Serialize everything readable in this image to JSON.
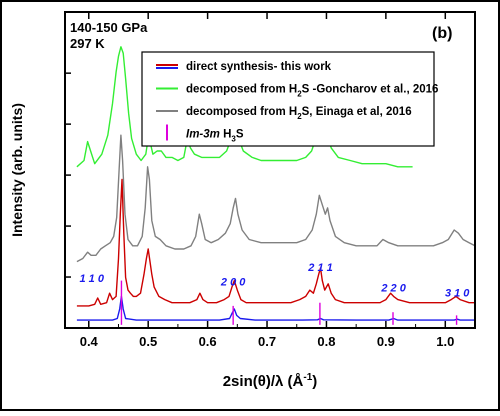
{
  "chart_data": {
    "type": "line",
    "panel_label": "(b)",
    "annotations": [
      "140-150 GPa",
      "297 K"
    ],
    "xlabel": "2sin(θ)/λ (Å⁻¹)",
    "xlabel_parts": {
      "main": "2sin(θ)/λ (",
      "unit": "Å",
      "sup": "-1",
      "close": ")"
    },
    "ylabel": "Intensity (arb. units)",
    "xlim": [
      0.36,
      1.05
    ],
    "ylim": [
      0,
      100
    ],
    "x_ticks": [
      "0.4",
      "0.5",
      "0.6",
      "0.7",
      "0.8",
      "0.9",
      "1.0"
    ],
    "legend": [
      {
        "type": "line",
        "color": "#cc0000",
        "color2": "#1a1aee",
        "parts": [
          {
            "t": "direct synthesis- this work"
          }
        ]
      },
      {
        "type": "line",
        "color": "#33ee33",
        "parts": [
          {
            "t": "decomposed from H"
          },
          {
            "t": "2",
            "sub": true
          },
          {
            "t": "S -Goncharov et al., 2016"
          }
        ]
      },
      {
        "type": "line",
        "color": "#808080",
        "parts": [
          {
            "t": "decomposed from H"
          },
          {
            "t": "2",
            "sub": true
          },
          {
            "t": "S, Einaga et al, 2016"
          }
        ]
      },
      {
        "type": "bar",
        "color": "#dd00dd",
        "parts": [
          {
            "t": "Im-3m",
            "italic": true
          },
          {
            "t": " H"
          },
          {
            "t": "3",
            "sub": true
          },
          {
            "t": "S"
          }
        ]
      }
    ],
    "peak_labels": [
      {
        "text": "1 1 0",
        "x": 0.405,
        "y": 14.5
      },
      {
        "text": "2 0 0",
        "x": 0.643,
        "y": 13.5
      },
      {
        "text": "2 1 1",
        "x": 0.79,
        "y": 18.0
      },
      {
        "text": "2 2 0",
        "x": 0.913,
        "y": 11.5
      },
      {
        "text": "3 1 0",
        "x": 1.02,
        "y": 10.0
      }
    ],
    "series": [
      {
        "name": "decomposed from H2S -Goncharov et al., 2016",
        "color": "#33ee33",
        "points": [
          [
            0.38,
            51
          ],
          [
            0.392,
            53
          ],
          [
            0.398,
            59
          ],
          [
            0.403,
            56
          ],
          [
            0.41,
            52
          ],
          [
            0.422,
            55
          ],
          [
            0.432,
            61
          ],
          [
            0.44,
            71
          ],
          [
            0.446,
            81
          ],
          [
            0.45,
            86
          ],
          [
            0.454,
            89
          ],
          [
            0.458,
            87
          ],
          [
            0.462,
            79
          ],
          [
            0.467,
            68
          ],
          [
            0.472,
            60
          ],
          [
            0.48,
            55
          ],
          [
            0.488,
            53
          ],
          [
            0.496,
            55
          ],
          [
            0.5,
            60
          ],
          [
            0.503,
            59
          ],
          [
            0.508,
            55
          ],
          [
            0.515,
            56
          ],
          [
            0.522,
            56
          ],
          [
            0.53,
            54
          ],
          [
            0.54,
            54
          ],
          [
            0.55,
            53
          ],
          [
            0.56,
            54
          ],
          [
            0.566,
            60
          ],
          [
            0.571,
            57
          ],
          [
            0.578,
            55
          ],
          [
            0.59,
            54
          ],
          [
            0.605,
            54
          ],
          [
            0.62,
            54
          ],
          [
            0.632,
            56
          ],
          [
            0.64,
            60
          ],
          [
            0.646,
            63
          ],
          [
            0.652,
            60
          ],
          [
            0.66,
            56
          ],
          [
            0.675,
            54
          ],
          [
            0.69,
            53
          ],
          [
            0.71,
            53
          ],
          [
            0.73,
            53
          ],
          [
            0.75,
            53
          ],
          [
            0.765,
            54
          ],
          [
            0.775,
            56
          ],
          [
            0.782,
            60
          ],
          [
            0.788,
            64
          ],
          [
            0.794,
            65
          ],
          [
            0.8,
            62
          ],
          [
            0.808,
            57
          ],
          [
            0.82,
            54
          ],
          [
            0.84,
            53
          ],
          [
            0.86,
            52
          ],
          [
            0.88,
            52
          ],
          [
            0.9,
            52
          ],
          [
            0.92,
            51
          ],
          [
            0.935,
            51
          ],
          [
            0.945,
            51
          ]
        ]
      },
      {
        "name": "decomposed from H2S, Einaga et al, 2016",
        "color": "#808080",
        "points": [
          [
            0.38,
            21
          ],
          [
            0.39,
            22
          ],
          [
            0.398,
            24
          ],
          [
            0.404,
            23
          ],
          [
            0.412,
            23
          ],
          [
            0.42,
            25
          ],
          [
            0.428,
            26
          ],
          [
            0.436,
            27
          ],
          [
            0.442,
            29
          ],
          [
            0.447,
            35
          ],
          [
            0.451,
            50
          ],
          [
            0.454,
            61
          ],
          [
            0.457,
            53
          ],
          [
            0.461,
            36
          ],
          [
            0.466,
            28
          ],
          [
            0.474,
            26
          ],
          [
            0.482,
            26
          ],
          [
            0.49,
            29
          ],
          [
            0.495,
            38
          ],
          [
            0.499,
            51
          ],
          [
            0.502,
            47
          ],
          [
            0.506,
            34
          ],
          [
            0.512,
            29
          ],
          [
            0.52,
            28
          ],
          [
            0.53,
            26
          ],
          [
            0.545,
            25
          ],
          [
            0.56,
            25
          ],
          [
            0.572,
            26
          ],
          [
            0.58,
            29
          ],
          [
            0.586,
            36
          ],
          [
            0.59,
            33
          ],
          [
            0.596,
            28
          ],
          [
            0.606,
            27
          ],
          [
            0.618,
            28
          ],
          [
            0.63,
            30
          ],
          [
            0.638,
            33
          ],
          [
            0.643,
            38
          ],
          [
            0.647,
            41
          ],
          [
            0.651,
            36
          ],
          [
            0.658,
            31
          ],
          [
            0.67,
            28
          ],
          [
            0.69,
            27
          ],
          [
            0.71,
            27
          ],
          [
            0.73,
            27
          ],
          [
            0.75,
            27
          ],
          [
            0.765,
            28
          ],
          [
            0.776,
            31
          ],
          [
            0.783,
            36
          ],
          [
            0.788,
            42
          ],
          [
            0.793,
            39
          ],
          [
            0.798,
            36
          ],
          [
            0.802,
            38
          ],
          [
            0.806,
            34
          ],
          [
            0.815,
            29
          ],
          [
            0.83,
            27
          ],
          [
            0.85,
            26
          ],
          [
            0.87,
            26
          ],
          [
            0.885,
            26
          ],
          [
            0.895,
            28
          ],
          [
            0.905,
            27
          ],
          [
            0.92,
            26
          ],
          [
            0.94,
            26
          ],
          [
            0.96,
            26
          ],
          [
            0.98,
            26
          ],
          [
            0.995,
            27
          ],
          [
            1.005,
            28
          ],
          [
            1.015,
            31
          ],
          [
            1.022,
            30
          ],
          [
            1.03,
            28
          ],
          [
            1.04,
            27
          ],
          [
            1.05,
            26
          ]
        ]
      },
      {
        "name": "direct synthesis- this work",
        "color": "#cc0000",
        "points": [
          [
            0.38,
            7
          ],
          [
            0.4,
            7
          ],
          [
            0.41,
            7.5
          ],
          [
            0.415,
            9.5
          ],
          [
            0.42,
            7.5
          ],
          [
            0.43,
            8
          ],
          [
            0.435,
            11
          ],
          [
            0.44,
            9
          ],
          [
            0.446,
            10
          ],
          [
            0.45,
            22
          ],
          [
            0.453,
            36
          ],
          [
            0.456,
            47
          ],
          [
            0.459,
            30
          ],
          [
            0.462,
            16
          ],
          [
            0.466,
            12
          ],
          [
            0.47,
            11
          ],
          [
            0.475,
            10
          ],
          [
            0.48,
            10
          ],
          [
            0.487,
            11
          ],
          [
            0.493,
            17
          ],
          [
            0.497,
            22
          ],
          [
            0.5,
            25
          ],
          [
            0.503,
            21
          ],
          [
            0.506,
            17
          ],
          [
            0.51,
            13
          ],
          [
            0.518,
            10
          ],
          [
            0.528,
            9
          ],
          [
            0.54,
            8
          ],
          [
            0.555,
            8
          ],
          [
            0.57,
            8
          ],
          [
            0.582,
            9
          ],
          [
            0.587,
            11
          ],
          [
            0.592,
            9
          ],
          [
            0.6,
            8
          ],
          [
            0.615,
            8
          ],
          [
            0.628,
            9
          ],
          [
            0.636,
            10
          ],
          [
            0.641,
            13
          ],
          [
            0.645,
            15
          ],
          [
            0.65,
            12
          ],
          [
            0.656,
            9
          ],
          [
            0.665,
            8
          ],
          [
            0.68,
            8
          ],
          [
            0.7,
            8
          ],
          [
            0.72,
            8
          ],
          [
            0.74,
            8
          ],
          [
            0.755,
            9
          ],
          [
            0.765,
            10
          ],
          [
            0.772,
            12
          ],
          [
            0.778,
            11
          ],
          [
            0.783,
            14
          ],
          [
            0.787,
            17
          ],
          [
            0.79,
            19
          ],
          [
            0.793,
            15
          ],
          [
            0.797,
            12
          ],
          [
            0.803,
            14
          ],
          [
            0.808,
            11
          ],
          [
            0.815,
            9
          ],
          [
            0.83,
            8
          ],
          [
            0.85,
            8
          ],
          [
            0.87,
            8
          ],
          [
            0.89,
            8
          ],
          [
            0.9,
            9
          ],
          [
            0.908,
            11
          ],
          [
            0.913,
            10
          ],
          [
            0.92,
            9
          ],
          [
            0.94,
            8
          ],
          [
            0.96,
            8
          ],
          [
            0.98,
            8
          ],
          [
            1.0,
            8
          ],
          [
            1.01,
            9
          ],
          [
            1.018,
            10
          ],
          [
            1.025,
            9
          ],
          [
            1.04,
            8
          ],
          [
            1.05,
            8
          ]
        ]
      },
      {
        "name": "direct synthesis- this work",
        "color": "#1a1aee",
        "points": [
          [
            0.38,
            2.5
          ],
          [
            0.42,
            2.5
          ],
          [
            0.44,
            2.5
          ],
          [
            0.448,
            3
          ],
          [
            0.452,
            6
          ],
          [
            0.455,
            10
          ],
          [
            0.458,
            6
          ],
          [
            0.462,
            3
          ],
          [
            0.48,
            2.5
          ],
          [
            0.5,
            2.5
          ],
          [
            0.56,
            2.5
          ],
          [
            0.62,
            2.5
          ],
          [
            0.637,
            3
          ],
          [
            0.642,
            5
          ],
          [
            0.645,
            6
          ],
          [
            0.649,
            4
          ],
          [
            0.655,
            3
          ],
          [
            0.68,
            2.5
          ],
          [
            0.76,
            2.5
          ],
          [
            0.785,
            2.6
          ],
          [
            0.79,
            3
          ],
          [
            0.795,
            2.6
          ],
          [
            0.85,
            2.5
          ],
          [
            0.905,
            2.5
          ],
          [
            0.913,
            3
          ],
          [
            0.92,
            2.5
          ],
          [
            0.98,
            2.5
          ],
          [
            1.015,
            2.5
          ],
          [
            1.02,
            2.8
          ],
          [
            1.025,
            2.5
          ],
          [
            1.05,
            2.5
          ]
        ]
      }
    ],
    "reference_bars": {
      "name": "Im-3m H3S",
      "color": "#dd00dd",
      "baseline": 1,
      "x": [
        0.455,
        0.643,
        0.789,
        0.912,
        1.019
      ],
      "y": [
        15,
        7,
        8,
        5,
        4
      ]
    }
  }
}
